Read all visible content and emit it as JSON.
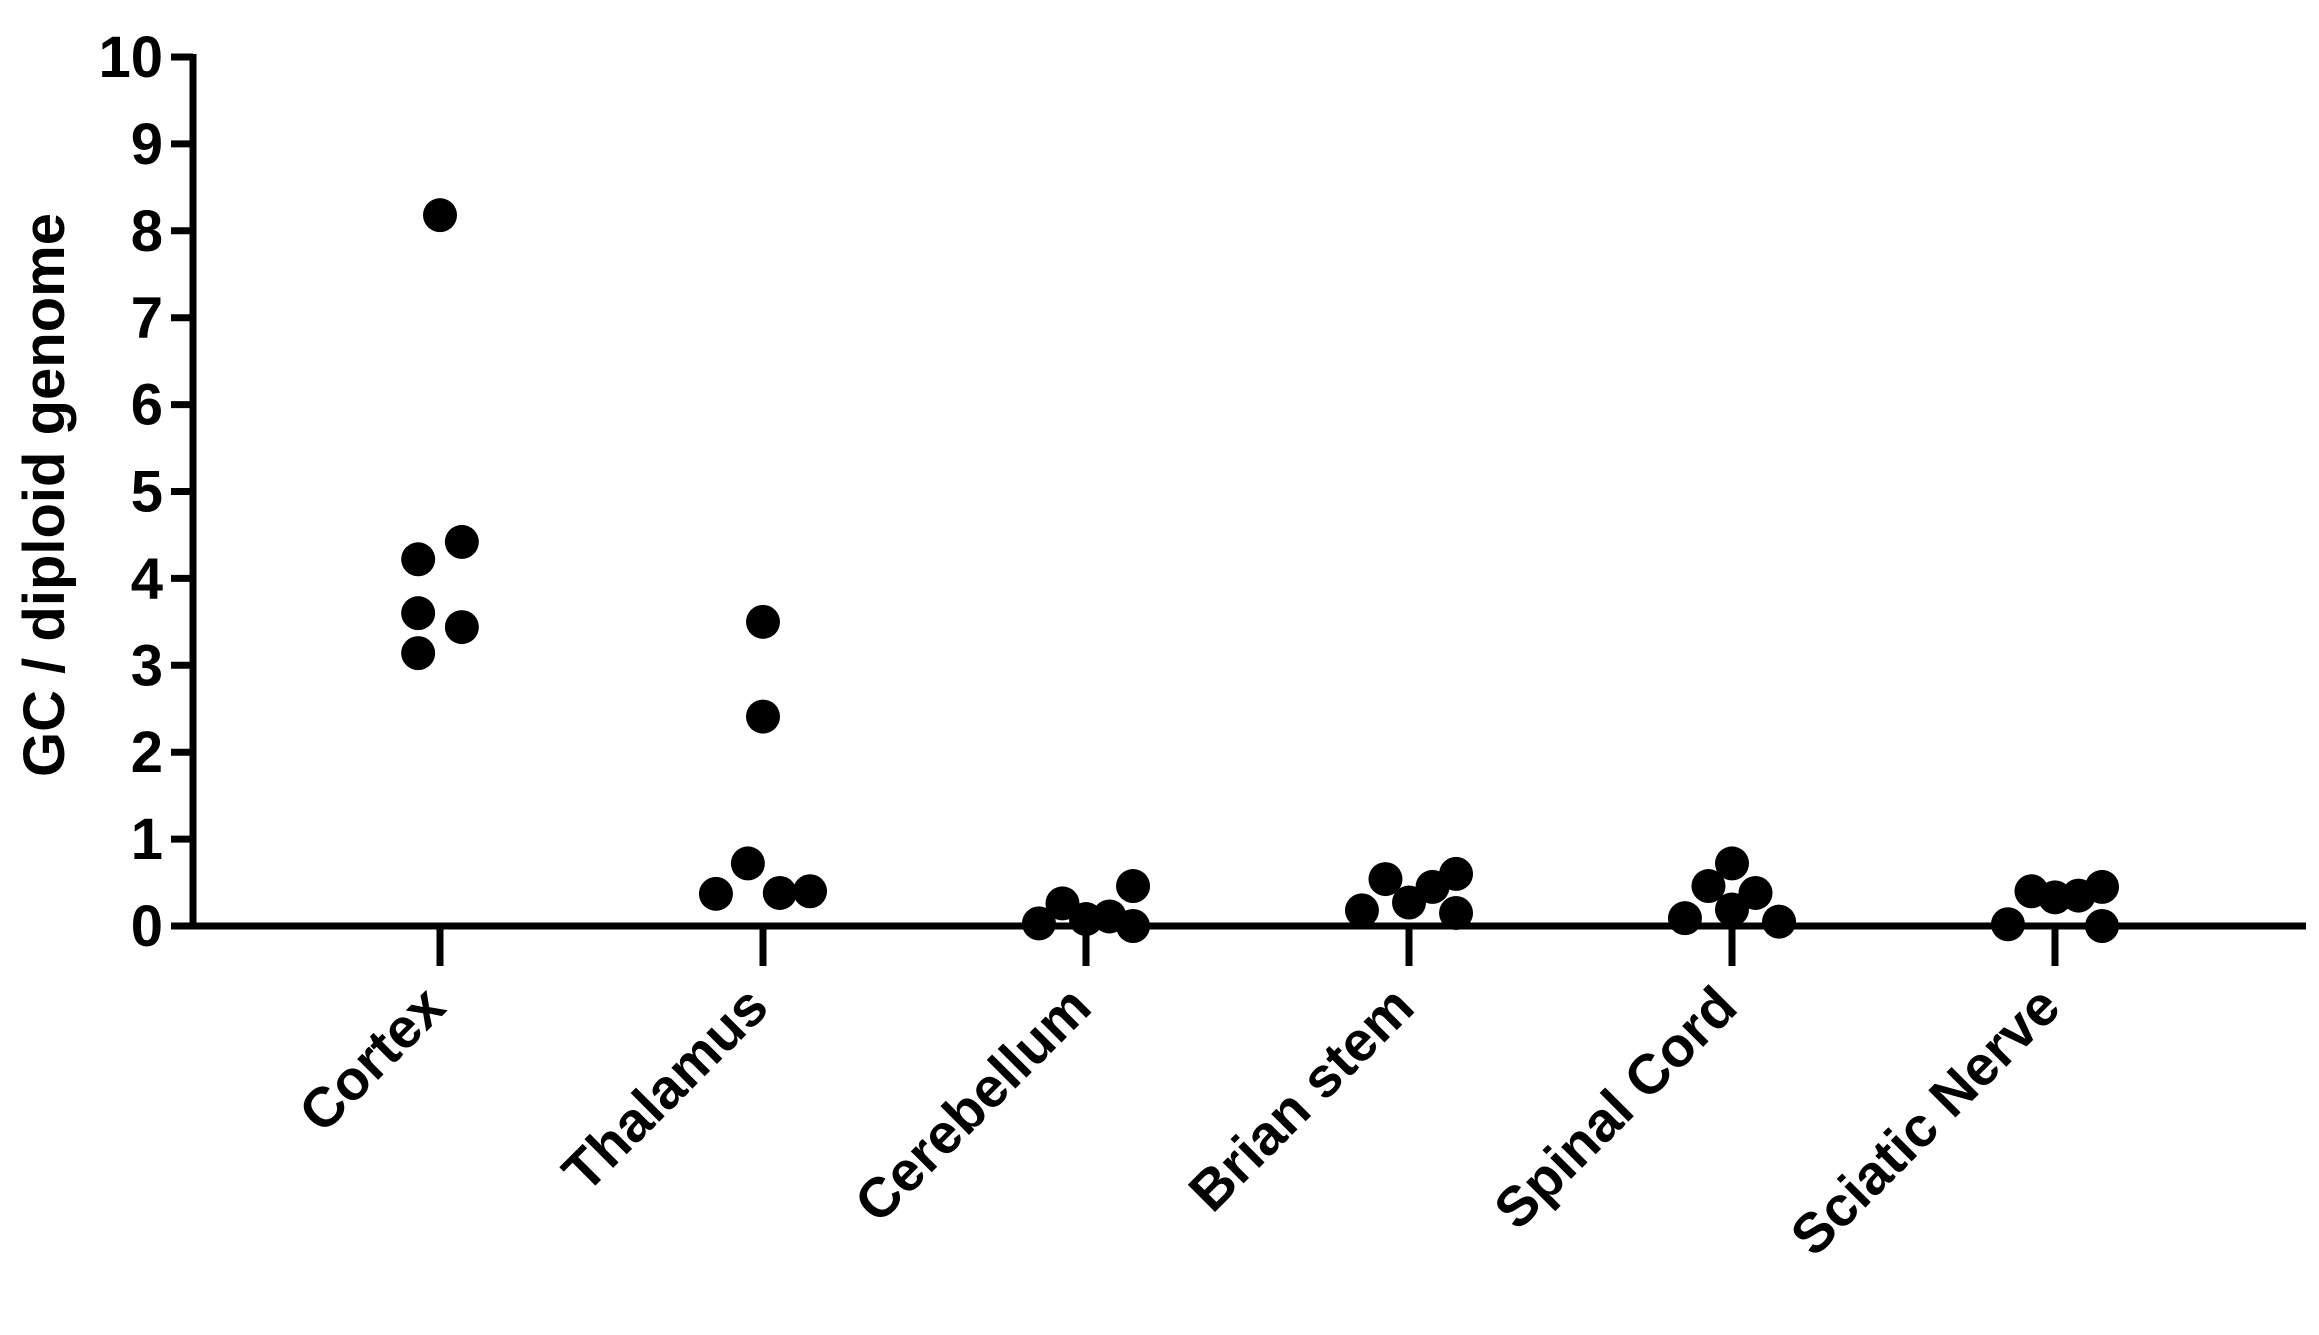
{
  "chart_data": {
    "type": "scatter",
    "title": "",
    "xlabel": "",
    "ylabel": "GC / diploid genome",
    "ylim": [
      0,
      10
    ],
    "yticks": [
      "0",
      "1",
      "2",
      "3",
      "4",
      "5",
      "6",
      "7",
      "8",
      "9",
      "10"
    ],
    "grid": false,
    "legend": "none",
    "marker_color": "#000000",
    "categories": [
      "Cortex",
      "Thalamus",
      "Cerebellum",
      "Brian stem",
      "Spinal Cord",
      "Sciatic Nerve"
    ],
    "points": [
      {
        "category": "Cortex",
        "offset": 0.0,
        "y": 8.18
      },
      {
        "category": "Cortex",
        "offset": -0.13,
        "y": 4.22
      },
      {
        "category": "Cortex",
        "offset": 0.13,
        "y": 4.42
      },
      {
        "category": "Cortex",
        "offset": -0.13,
        "y": 3.6
      },
      {
        "category": "Cortex",
        "offset": 0.13,
        "y": 3.44
      },
      {
        "category": "Cortex",
        "offset": -0.13,
        "y": 3.14
      },
      {
        "category": "Thalamus",
        "offset": 0.0,
        "y": 3.5
      },
      {
        "category": "Thalamus",
        "offset": 0.0,
        "y": 2.41
      },
      {
        "category": "Thalamus",
        "offset": -0.09,
        "y": 0.72
      },
      {
        "category": "Thalamus",
        "offset": -0.28,
        "y": 0.37
      },
      {
        "category": "Thalamus",
        "offset": 0.1,
        "y": 0.38
      },
      {
        "category": "Thalamus",
        "offset": 0.28,
        "y": 0.4
      },
      {
        "category": "Cerebellum",
        "offset": -0.28,
        "y": 0.03
      },
      {
        "category": "Cerebellum",
        "offset": -0.14,
        "y": 0.26
      },
      {
        "category": "Cerebellum",
        "offset": 0.0,
        "y": 0.08
      },
      {
        "category": "Cerebellum",
        "offset": 0.14,
        "y": 0.11
      },
      {
        "category": "Cerebellum",
        "offset": 0.28,
        "y": 0.46
      },
      {
        "category": "Cerebellum",
        "offset": 0.28,
        "y": 0.0
      },
      {
        "category": "Brian stem",
        "offset": -0.28,
        "y": 0.18
      },
      {
        "category": "Brian stem",
        "offset": -0.14,
        "y": 0.54
      },
      {
        "category": "Brian stem",
        "offset": 0.0,
        "y": 0.27
      },
      {
        "category": "Brian stem",
        "offset": 0.14,
        "y": 0.45
      },
      {
        "category": "Brian stem",
        "offset": 0.28,
        "y": 0.6
      },
      {
        "category": "Brian stem",
        "offset": 0.28,
        "y": 0.15
      },
      {
        "category": "Spinal Cord",
        "offset": -0.28,
        "y": 0.09
      },
      {
        "category": "Spinal Cord",
        "offset": -0.14,
        "y": 0.46
      },
      {
        "category": "Spinal Cord",
        "offset": 0.0,
        "y": 0.72
      },
      {
        "category": "Spinal Cord",
        "offset": 0.0,
        "y": 0.19
      },
      {
        "category": "Spinal Cord",
        "offset": 0.14,
        "y": 0.38
      },
      {
        "category": "Spinal Cord",
        "offset": 0.28,
        "y": 0.05
      },
      {
        "category": "Sciatic Nerve",
        "offset": -0.28,
        "y": 0.02
      },
      {
        "category": "Sciatic Nerve",
        "offset": -0.14,
        "y": 0.4
      },
      {
        "category": "Sciatic Nerve",
        "offset": 0.0,
        "y": 0.33
      },
      {
        "category": "Sciatic Nerve",
        "offset": 0.14,
        "y": 0.35
      },
      {
        "category": "Sciatic Nerve",
        "offset": 0.28,
        "y": 0.45
      },
      {
        "category": "Sciatic Nerve",
        "offset": 0.28,
        "y": 0.0
      }
    ]
  }
}
